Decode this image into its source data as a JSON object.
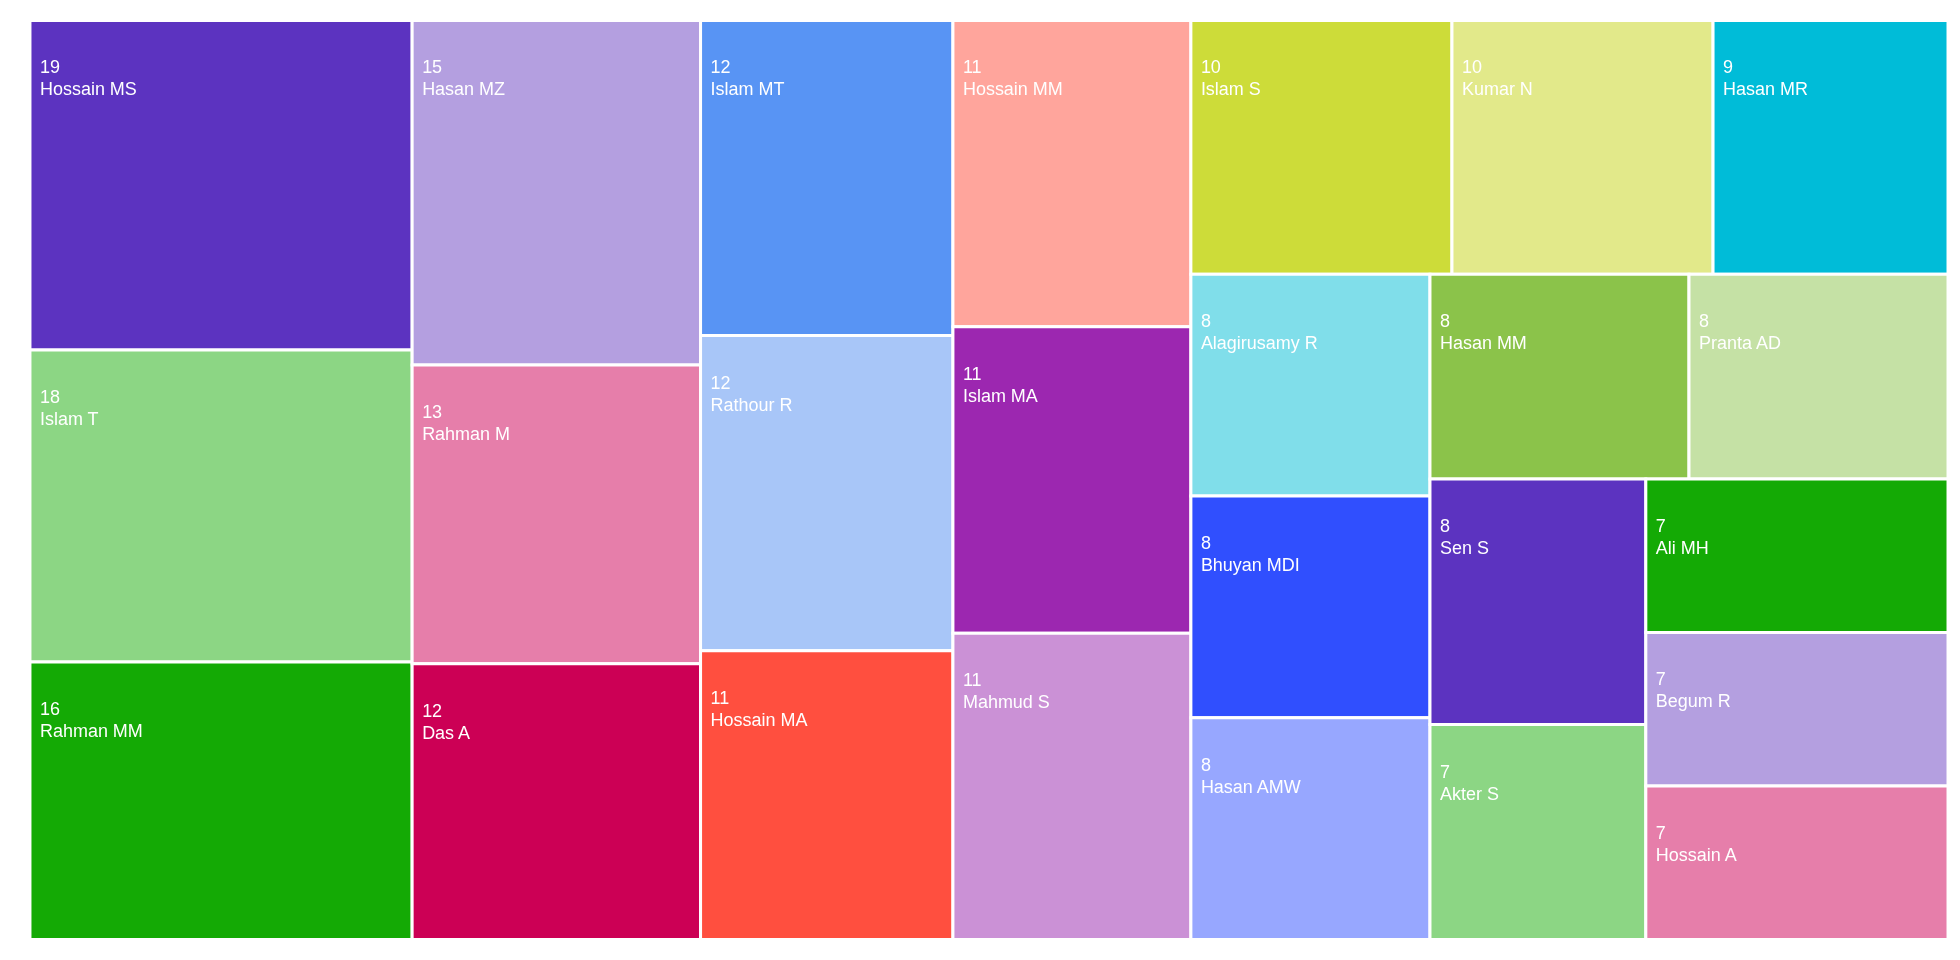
{
  "chart_data": {
    "type": "other",
    "data_labels": true,
    "categories": [
      "Hossain MS",
      "Islam T",
      "Rahman MM",
      "Hasan MZ",
      "Rahman M",
      "Das A",
      "Islam MT",
      "Rathour R",
      "Hossain MA",
      "Hossain MM",
      "Islam MA",
      "Mahmud S",
      "Islam S",
      "Kumar N",
      "Hasan MR",
      "Alagirusamy R",
      "Bhuyan MDI",
      "Hasan AMW",
      "Hasan MM",
      "Pranta AD",
      "Sen S",
      "Akter S",
      "Ali MH",
      "Begum R",
      "Hossain A"
    ],
    "values": [
      19,
      18,
      16,
      15,
      13,
      12,
      12,
      12,
      11,
      11,
      11,
      11,
      10,
      10,
      9,
      8,
      8,
      8,
      8,
      8,
      8,
      7,
      7,
      7,
      7
    ],
    "colors": [
      "#5c33c0",
      "#8cd684",
      "#14aa05",
      "#b49fe0",
      "#e67eaa",
      "#cc0055",
      "#5894f4",
      "#a8c6f8",
      "#ff4f3f",
      "#ffa59c",
      "#9c27b0",
      "#cb91d6",
      "#cddc39",
      "#e2e98a",
      "#00bcd8",
      "#80deea",
      "#304ffe",
      "#97a7ff",
      "#8bc34a",
      "#c5e1a5",
      "#5c33c0",
      "#8cd684",
      "#14aa05",
      "#b49fe0",
      "#e67eaa"
    ]
  }
}
